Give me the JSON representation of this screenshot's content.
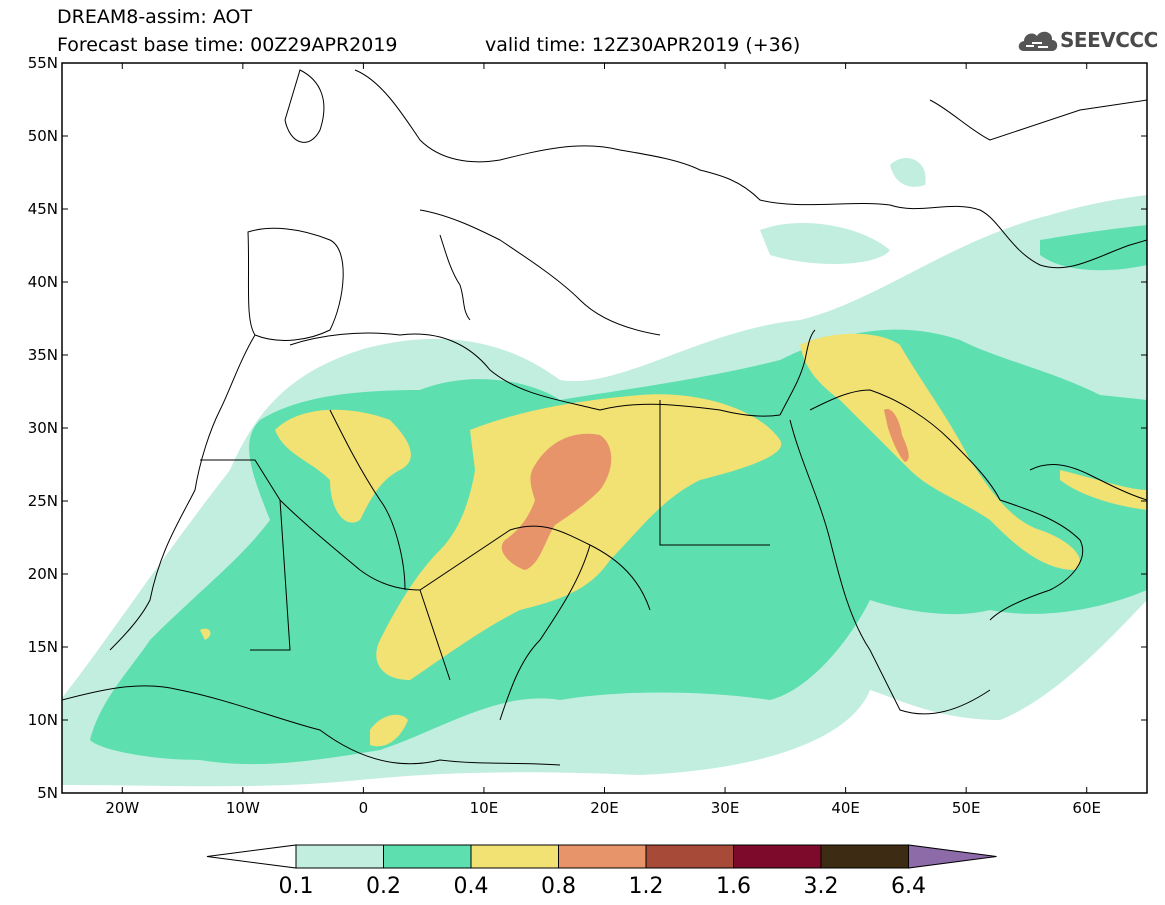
{
  "header": {
    "title_line1": "DREAM8-assim: AOT",
    "base_time": "Forecast base time: 00Z29APR2019",
    "valid_time": "valid time: 12Z30APR2019 (+36)",
    "logo_text": "SEEVCCC"
  },
  "map": {
    "lon_range": [
      -25,
      65
    ],
    "lat_range": [
      5,
      55
    ],
    "lat_labels": [
      "55N",
      "50N",
      "45N",
      "40N",
      "35N",
      "30N",
      "25N",
      "20N",
      "15N",
      "10N",
      "5N"
    ],
    "lon_labels": [
      "20W",
      "10W",
      "0",
      "10E",
      "20E",
      "30E",
      "40E",
      "50E",
      "60E"
    ]
  },
  "colorbar": {
    "labels": [
      "0.1",
      "0.2",
      "0.4",
      "0.8",
      "1.2",
      "1.6",
      "3.2",
      "6.4"
    ],
    "colors": [
      "#ffffff",
      "#c2eee0",
      "#5ddfb0",
      "#f2e173",
      "#e8946a",
      "#a84a38",
      "#7d0a2a",
      "#3e2b14",
      "#8d6aa8"
    ]
  }
}
